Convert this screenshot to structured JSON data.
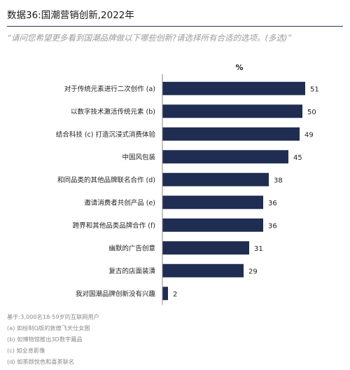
{
  "title": "数据36:国潮营销创新,2022年",
  "question": "“请问您希望更多看到国潮品牌做以下哪些创新?请选择所有合适的选项。(多选)”",
  "chart_data": {
    "type": "bar",
    "orientation": "horizontal",
    "unit_label": "%",
    "categories": [
      "对于传统元素进行二次创作 (a)",
      "以数字技术激活传统元素 (b)",
      "结合科技 (c) 打造沉浸式消费体验",
      "中国风包装",
      "和同品类的其他品牌联名合作 (d)",
      "邀请消费者共创产品 (e)",
      "跨界和其他品类品牌合作 (f)",
      "幽默的广告创意",
      "复古的店面装潢",
      "我对国潮品牌创新没有兴趣"
    ],
    "values": [
      51,
      50,
      49,
      45,
      38,
      36,
      36,
      31,
      29,
      2
    ],
    "xlim": [
      0,
      60
    ],
    "bar_color": "#1f2d52"
  },
  "notes": {
    "base": "基于:3,000名18-59岁的互联网用户",
    "items": [
      "(a) 如绘制Q版的敦煌飞天仕女图",
      "(b) 如博物馆推出3D数字藏品",
      "(c) 如全息影像",
      "(d) 如茶颜悦色和喜茶联名"
    ]
  }
}
